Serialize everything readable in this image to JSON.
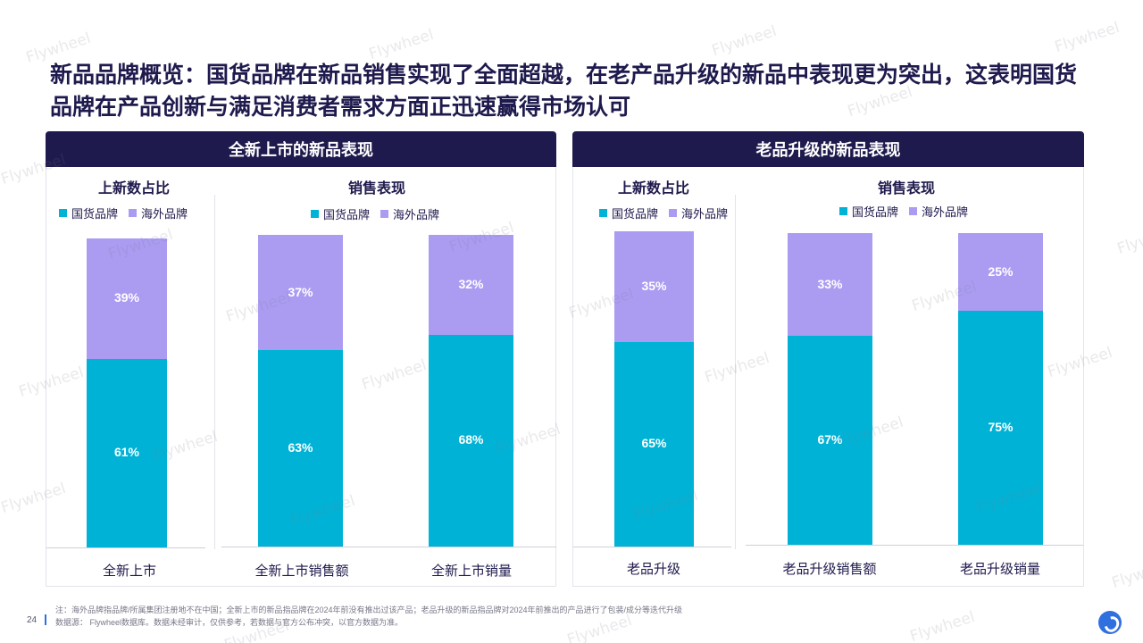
{
  "headline": "新品品牌概览：国货品牌在新品销售实现了全面超越，在老产品升级的新品中表现更为突出，这表明国货品牌在产品创新与满足消费者需求方面正迅速赢得市场认可",
  "watermark": "Flywheel",
  "legend": {
    "domestic": "国货品牌",
    "overseas": "海外品牌"
  },
  "colors": {
    "domestic": "#00b3d6",
    "overseas": "#ab9cf2",
    "header": "#1e1a4d"
  },
  "panels": [
    {
      "title": "全新上市的新品表现",
      "share_title": "上新数占比",
      "sales_title": "销售表现"
    },
    {
      "title": "老品升级的新品表现",
      "share_title": "上新数占比",
      "sales_title": "销售表现"
    }
  ],
  "chart_data": [
    {
      "type": "bar",
      "stacked": true,
      "unit": "%",
      "categories": [
        "全新上市"
      ],
      "series": [
        {
          "name": "国货品牌",
          "values": [
            61
          ]
        },
        {
          "name": "海外品牌",
          "values": [
            39
          ]
        }
      ]
    },
    {
      "type": "bar",
      "stacked": true,
      "unit": "%",
      "categories": [
        "全新上市销售额",
        "全新上市销量"
      ],
      "series": [
        {
          "name": "国货品牌",
          "values": [
            63,
            68
          ]
        },
        {
          "name": "海外品牌",
          "values": [
            37,
            32
          ]
        }
      ]
    },
    {
      "type": "bar",
      "stacked": true,
      "unit": "%",
      "categories": [
        "老品升级"
      ],
      "series": [
        {
          "name": "国货品牌",
          "values": [
            65
          ]
        },
        {
          "name": "海外品牌",
          "values": [
            35
          ]
        }
      ]
    },
    {
      "type": "bar",
      "stacked": true,
      "unit": "%",
      "categories": [
        "老品升级销售额",
        "老品升级销量"
      ],
      "series": [
        {
          "name": "国货品牌",
          "values": [
            67,
            75
          ]
        },
        {
          "name": "海外品牌",
          "values": [
            33,
            25
          ]
        }
      ]
    }
  ],
  "footnote": {
    "note": "注：海外品牌指品牌/所属集团注册地不在中国；全新上市的新品指品牌在2024年前没有推出过该产品；老品升级的新品指品牌对2024年前推出的产品进行了包装/成分等迭代升级",
    "source": "数据源：  Flywheel数据库。数据未经审计，仅供参考，若数据与官方公布冲突，以官方数据为准。"
  },
  "page_number": "24"
}
